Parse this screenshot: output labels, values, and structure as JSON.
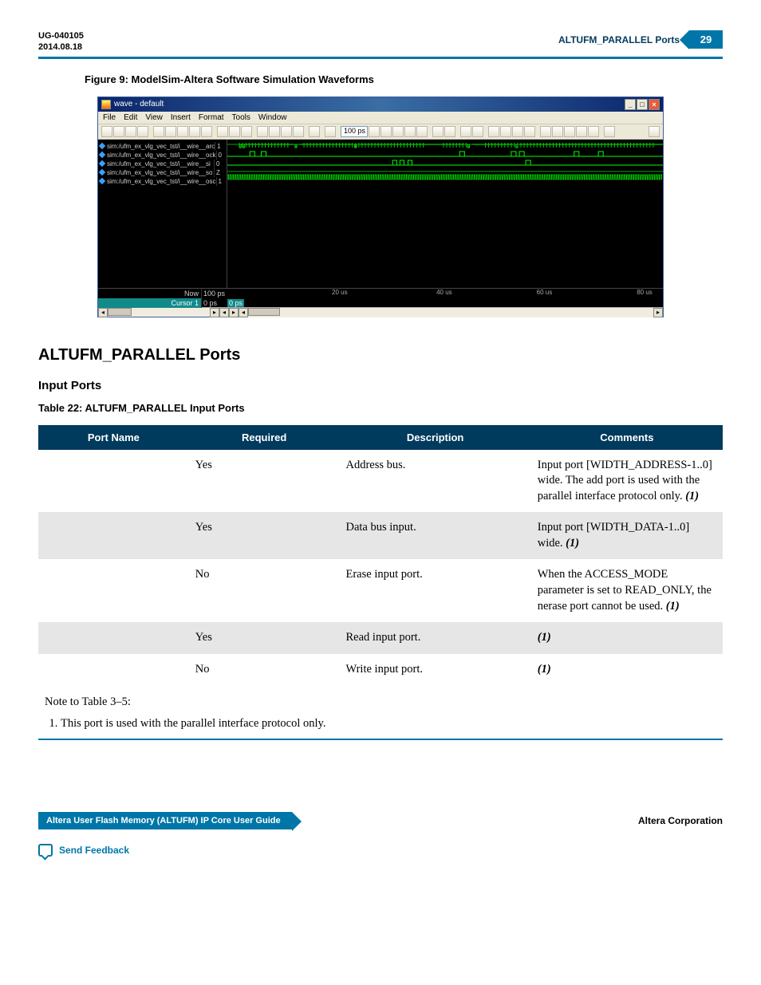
{
  "header": {
    "code": "UG-040105",
    "date": "2014.08.18",
    "right_title": "ALTUFM_PARALLEL Ports",
    "page_num": "29"
  },
  "figure": {
    "caption": "Figure 9: ModelSim-Altera Software Simulation Waveforms"
  },
  "modelsim": {
    "title": "wave - default",
    "menus": [
      "File",
      "Edit",
      "View",
      "Insert",
      "Format",
      "Tools",
      "Window"
    ],
    "time_field": "100 ps",
    "signals": [
      {
        "name": "sim:/ufm_ex_vlg_vec_tst/i__wire__arc",
        "val": "1"
      },
      {
        "name": "sim:/ufm_ex_vlg_vec_tst/i__wire__ock",
        "val": "0"
      },
      {
        "name": "sim:/ufm_ex_vlg_vec_tst/i__wire__si",
        "val": "0"
      },
      {
        "name": "sim:/ufm_ex_vlg_vec_tst/i__wire__so",
        "val": "Z"
      },
      {
        "name": "sim:/ufm_ex_vlg_vec_tst/i__wire__osc",
        "val": "1"
      }
    ],
    "now_label": "Now",
    "now_val": "100 ps",
    "cursor_label": "Cursor 1",
    "cursor_val": "0 ps",
    "cursor_mark": "0 ps",
    "ticks": [
      {
        "pos_pct": 24,
        "label": "20 us"
      },
      {
        "pos_pct": 48,
        "label": "40 us"
      },
      {
        "pos_pct": 71,
        "label": "60 us"
      },
      {
        "pos_pct": 94,
        "label": "80 us"
      }
    ],
    "waveform_color": "#00ff00",
    "bg": "#000000"
  },
  "section": {
    "h1": "ALTUFM_PARALLEL Ports",
    "h2": "Input Ports",
    "table_caption": "Table 22: ALTUFM_PARALLEL Input Ports"
  },
  "table": {
    "headers": [
      "Port Name",
      "Required",
      "Description",
      "Comments"
    ],
    "rows": [
      {
        "portname": "",
        "required": "Yes",
        "description": "Address bus.",
        "comments": "Input port [WIDTH_ADDRESS-1..0] wide. The add port is used with the parallel interface protocol only.",
        "note": "(1)",
        "stripe": false
      },
      {
        "portname": "",
        "required": "Yes",
        "description": "Data bus input.",
        "comments": "Input port [WIDTH_DATA-1..0] wide.",
        "note": "(1)",
        "stripe": true
      },
      {
        "portname": "",
        "required": "No",
        "description": "Erase input port.",
        "comments": "When the ACCESS_MODE parameter is set to READ_ONLY, the nerase port cannot be used.",
        "note": "(1)",
        "stripe": false
      },
      {
        "portname": "",
        "required": "Yes",
        "description": "Read input port.",
        "comments": "",
        "note": "(1)",
        "stripe": true
      },
      {
        "portname": "",
        "required": "No",
        "description": "Write input port.",
        "comments": "",
        "note": "(1)",
        "stripe": false
      }
    ],
    "note_intro": "Note to Table 3–5:",
    "note_text": "This port is used with the parallel interface protocol only."
  },
  "footer": {
    "left": "Altera User Flash Memory (ALTUFM) IP Core User Guide",
    "right": "Altera Corporation",
    "feedback": "Send Feedback"
  }
}
